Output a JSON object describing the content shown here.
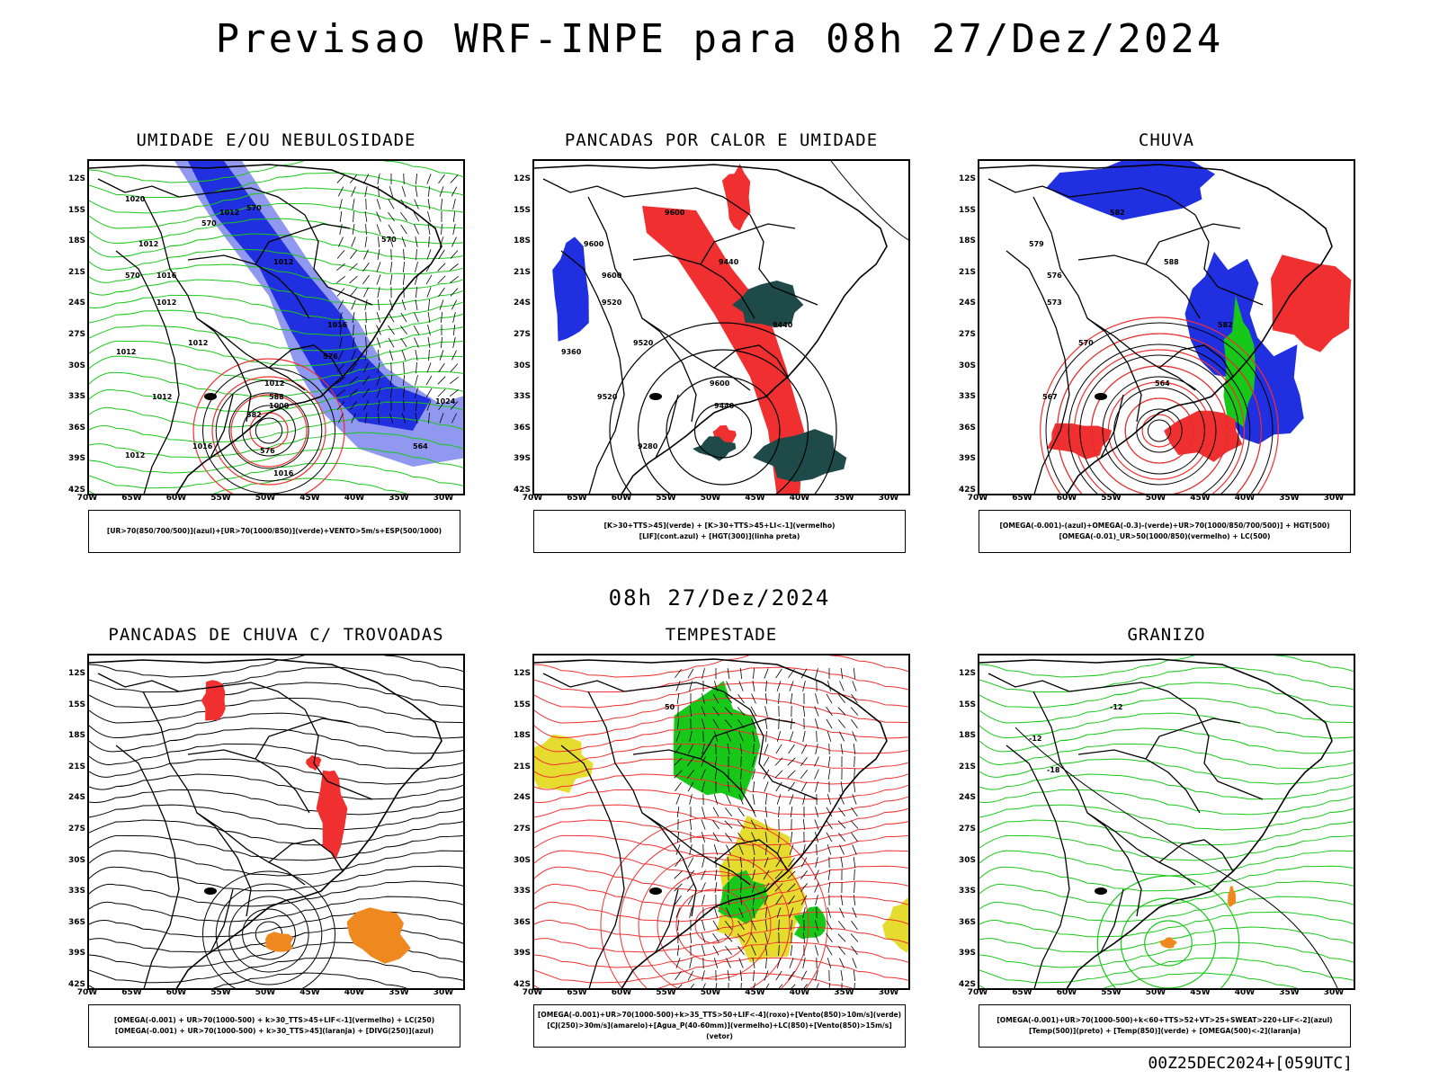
{
  "title": "Previsao WRF-INPE  para 08h 27/Dez/2024",
  "mid_title": "08h 27/Dez/2024",
  "run_label": "00Z25DEC2024+[059UTC]",
  "lat_labels": [
    "12S",
    "15S",
    "18S",
    "21S",
    "24S",
    "27S",
    "30S",
    "33S",
    "36S",
    "39S",
    "42S"
  ],
  "lon_labels": [
    "70W",
    "65W",
    "60W",
    "55W",
    "50W",
    "45W",
    "40W",
    "35W",
    "30W"
  ],
  "colors": {
    "blue": "#2030e0",
    "light_blue": "#9098f0",
    "green": "#18c818",
    "red": "#f03030",
    "dark_teal": "#1f4a4a",
    "orange": "#f08820",
    "yellow": "#e6dc30"
  },
  "panels": [
    {
      "id": "umidade",
      "title": "UMIDADE E/OU NEBULOSIDADE",
      "legend": [
        "[UR>70(850/700/500)](azul)+[UR>70(1000/850)](verde)+VENTO>5m/s+ESP(500/1000)"
      ],
      "labels": [
        "1012",
        "1012",
        "1016",
        "1012",
        "1012",
        "1012",
        "1012",
        "1016",
        "1012",
        "1012",
        "1000",
        "1016",
        "1016",
        "1012",
        "1020",
        "1024",
        "570",
        "570",
        "570",
        "570",
        "576",
        "588",
        "582",
        "576",
        "564"
      ]
    },
    {
      "id": "pancadas_calor",
      "title": "PANCADAS POR CALOR E UMIDADE",
      "legend": [
        "[K>30+TTS>45](verde) + [K>30+TTS>45+LI<-1](vermelho)",
        "[LIF](cont.azul) + [HGT(300)](linha preta)"
      ],
      "labels": [
        "9600",
        "9600",
        "9600",
        "9520",
        "9520",
        "9520",
        "9600",
        "9440",
        "9440",
        "9360",
        "9440",
        "9280"
      ]
    },
    {
      "id": "chuva",
      "title": "CHUVA",
      "legend": [
        "[OMEGA(-0.001)-(azul)+OMEGA(-0.3)-(verde)+UR>70(1000/850/700/500)] + HGT(500)",
        "[OMEGA(-0.01)_UR>50(1000/850)(vermelho) + LC(500)"
      ],
      "labels": [
        "582",
        "579",
        "576",
        "573",
        "570",
        "567",
        "564",
        "582",
        "588"
      ]
    },
    {
      "id": "pancadas_trovoadas",
      "title": "PANCADAS DE CHUVA C/ TROVOADAS",
      "legend": [
        "[OMEGA(-0.001) + UR>70(1000-500) + k>30_TTS>45+LIF<-1](vermelho) + LC(250)",
        "[OMEGA(-0.001) + UR>70(1000-500) + k>30_TTS>45](laranja) + [DIVG(250)](azul)"
      ],
      "labels": []
    },
    {
      "id": "tempestade",
      "title": "TEMPESTADE",
      "legend": [
        "[OMEGA(-0.001)+UR>70(1000-500)+k>35_TTS>50+LIF<-4](roxo)+[Vento(850)>10m/s](verde)",
        "[CJ(250)>30m/s](amarelo)+[Agua_P(40-60mm)](vermelho)+LC(850)+[Vento(850)>15m/s](vetor)"
      ],
      "labels": [
        "50"
      ]
    },
    {
      "id": "granizo",
      "title": "GRANIZO",
      "legend": [
        "[OMEGA(-0.001)+UR>70(1000-500)+k<60+TTS>52+VT>25+SWEAT>220+LIF<-2](azul)",
        "[Temp(500)](preto) + [Temp(850)](verde) + [OMEGA(500)<-2](laranja)"
      ],
      "labels": [
        "-12",
        "-12",
        "-18"
      ]
    }
  ]
}
